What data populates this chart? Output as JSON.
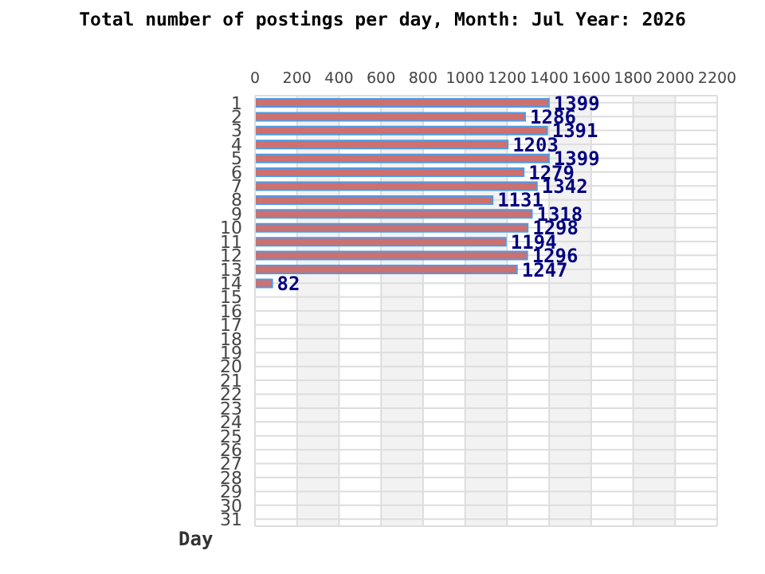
{
  "chart_data": {
    "type": "bar",
    "orientation": "horizontal",
    "title": "Total number of postings per day, Month: Jul  Year: 2026",
    "ylabel": "Day",
    "categories": [
      "1",
      "2",
      "3",
      "4",
      "5",
      "6",
      "7",
      "8",
      "9",
      "10",
      "11",
      "12",
      "13",
      "14",
      "15",
      "16",
      "17",
      "18",
      "19",
      "20",
      "21",
      "22",
      "23",
      "24",
      "25",
      "26",
      "27",
      "28",
      "29",
      "30",
      "31"
    ],
    "values": [
      1399,
      1286,
      1391,
      1203,
      1399,
      1279,
      1342,
      1131,
      1318,
      1298,
      1194,
      1296,
      1247,
      82,
      null,
      null,
      null,
      null,
      null,
      null,
      null,
      null,
      null,
      null,
      null,
      null,
      null,
      null,
      null,
      null,
      null
    ],
    "color": "#cc7070",
    "xlim": [
      0,
      2200
    ],
    "xticks": [
      0,
      200,
      400,
      600,
      800,
      1000,
      1200,
      1400,
      1600,
      1800,
      2000,
      2200
    ],
    "grid": true,
    "data_labels": true
  }
}
